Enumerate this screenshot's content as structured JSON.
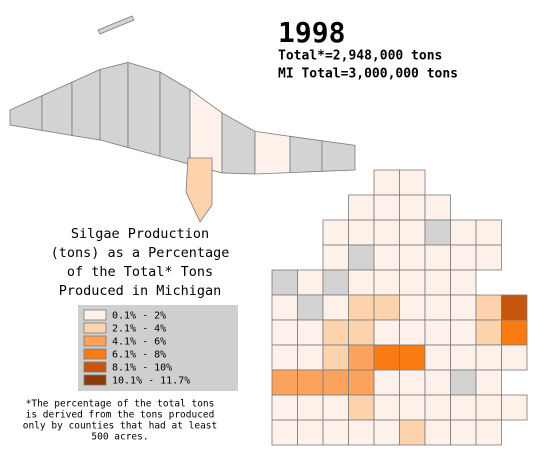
{
  "title": "1998",
  "totals": [
    "Total*=2,948,000 tons",
    "MI Total=3,000,000 tons"
  ],
  "map_title": [
    "Silgae Production",
    "(tons) as a Percentage",
    "of the Total* Tons",
    "Produced in Michigan"
  ],
  "legend": [
    {
      "label": "0.1% - 2%",
      "color": "#fdf1ea"
    },
    {
      "label": "2.1% - 4%",
      "color": "#fcd3ad"
    },
    {
      "label": "4.1% - 6%",
      "color": "#fba35c"
    },
    {
      "label": "6.1% - 8%",
      "color": "#f97b12"
    },
    {
      "label": "8.1% - 10%",
      "color": "#c4560d"
    },
    {
      "label": "10.1% - 11.7%",
      "color": "#8b3a0a"
    }
  ],
  "footnote": [
    "*The percentage of the total tons",
    "is derived from the tons produced",
    "only by counties that had at least",
    "500 acres."
  ]
}
